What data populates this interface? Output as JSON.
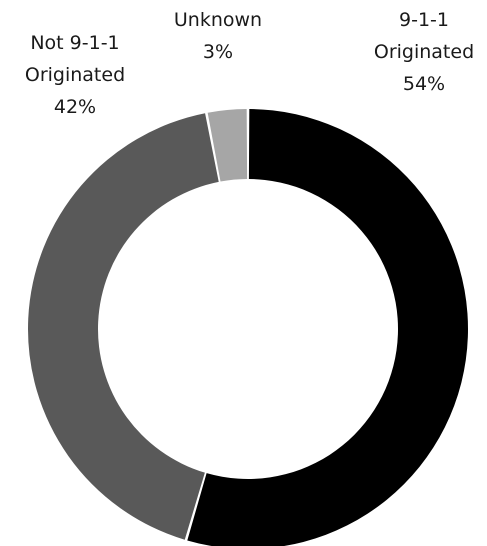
{
  "chart_data": {
    "type": "pie",
    "variant": "donut",
    "title": "",
    "slices": [
      {
        "label_lines": [
          "9-1-1",
          "Originated"
        ],
        "value": 54,
        "value_label": "54%",
        "color": "#000000"
      },
      {
        "label_lines": [
          "Not 9-1-1",
          "Originated"
        ],
        "value": 42,
        "value_label": "42%",
        "color": "#595959"
      },
      {
        "label_lines": [
          "Unknown"
        ],
        "value": 3,
        "value_label": "3%",
        "color": "#a6a6a6"
      }
    ]
  }
}
